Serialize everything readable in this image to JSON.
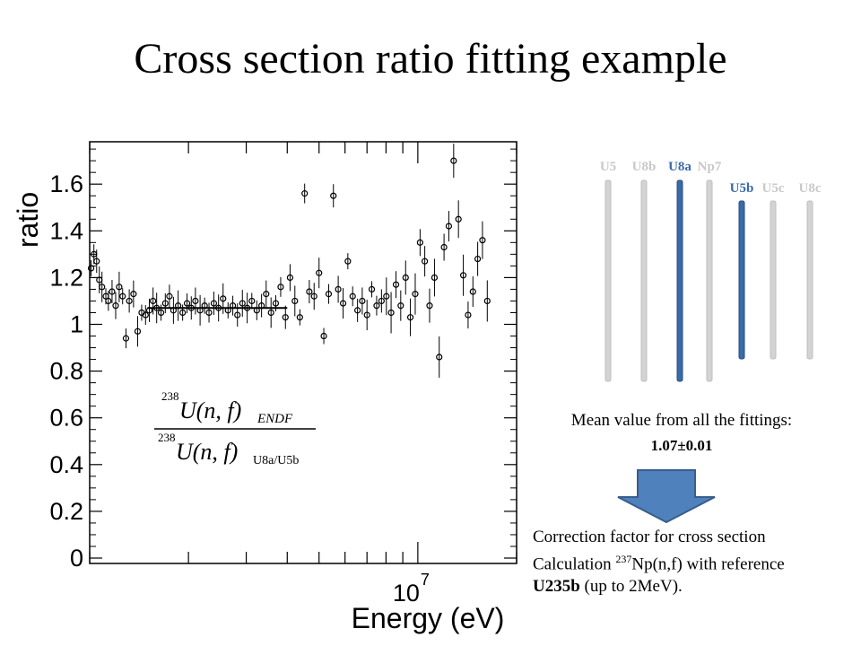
{
  "slide": {
    "title": "Cross section ratio fitting example"
  },
  "formula": {
    "numerator_mass": "238",
    "numerator_text": "U(n, f)",
    "numerator_sub": "ENDF",
    "denominator_mass": "238",
    "denominator_text": "U(n, f)",
    "denominator_sub": "U8a/U5b"
  },
  "detectors": {
    "top_labels": [
      "U5",
      "U8b",
      "U8a",
      "Np7"
    ],
    "bottom_labels": [
      "U5b",
      "U5c",
      "U8c"
    ],
    "highlighted": [
      "U8a",
      "U5b"
    ],
    "colors": {
      "normal_bar": "#d3d3d3",
      "highlight_bar": "#3b6aa8",
      "normal_label": "#c8c8c8",
      "highlight_label": "#3b6aa8"
    }
  },
  "annotation": {
    "mean_text": "Mean value from all the fittings:",
    "mean_value": "1.07±0.01",
    "correction_line1": "Correction factor for cross section",
    "correction_line2_pre": "Calculation ",
    "correction_line2_sup": "237",
    "correction_line2_post": "Np(n,f) with reference",
    "correction_line3_bold": "U235b",
    "correction_line3_rest": " (up to 2MeV).",
    "arrow_color": "#4f81bd"
  },
  "chart_data": {
    "type": "scatter",
    "title": "",
    "xlabel": "Energy (eV)",
    "ylabel": "ratio",
    "x_scale": "log",
    "xlim": [
      1000000,
      20000000
    ],
    "ylim": [
      0,
      1.8
    ],
    "y_ticks": [
      "0",
      "0.2",
      "0.4",
      "0.6",
      "0.8",
      "1",
      "1.2",
      "1.4",
      "1.6"
    ],
    "x_tick_label_base": "10",
    "x_tick_label_exp": "7",
    "x_tick_value": 10000000,
    "fit": {
      "value": 1.07,
      "x_range": [
        1500000,
        4000000
      ]
    },
    "series": [
      {
        "marker": "open-circle",
        "x": [
          1010000,
          1030000,
          1050000,
          1070000,
          1090000,
          1120000,
          1140000,
          1170000,
          1200000,
          1230000,
          1260000,
          1290000,
          1320000,
          1360000,
          1400000,
          1440000,
          1480000,
          1520000,
          1560000,
          1600000,
          1650000,
          1700000,
          1750000,
          1800000,
          1860000,
          1920000,
          1980000,
          2040000,
          2100000,
          2170000,
          2240000,
          2310000,
          2390000,
          2470000,
          2550000,
          2640000,
          2730000,
          2820000,
          2920000,
          3020000,
          3120000,
          3230000,
          3340000,
          3450000,
          3570000,
          3690000,
          3820000,
          3950000,
          4080000,
          4220000,
          4370000,
          4520000,
          4670000,
          4830000,
          5000000,
          5170000,
          5350000,
          5530000,
          5720000,
          5920000,
          6120000,
          6330000,
          6550000,
          6770000,
          7000000,
          7240000,
          7490000,
          7750000,
          8020000,
          8290000,
          8580000,
          8870000,
          9180000,
          9490000,
          9820000,
          10160000,
          10500000,
          10860000,
          11240000,
          11620000,
          12020000,
          12430000,
          12860000,
          13300000,
          13760000,
          14230000,
          14720000,
          15220000,
          15740000,
          16280000
        ],
        "y": [
          1.24,
          1.3,
          1.27,
          1.19,
          1.16,
          1.12,
          1.1,
          1.14,
          1.08,
          1.16,
          1.12,
          0.94,
          1.1,
          1.13,
          0.97,
          1.05,
          1.04,
          1.06,
          1.1,
          1.07,
          1.05,
          1.09,
          1.12,
          1.06,
          1.08,
          1.05,
          1.09,
          1.07,
          1.1,
          1.06,
          1.08,
          1.05,
          1.09,
          1.07,
          1.11,
          1.06,
          1.08,
          1.04,
          1.09,
          1.07,
          1.1,
          1.06,
          1.08,
          1.13,
          1.05,
          1.09,
          1.16,
          1.03,
          1.2,
          1.1,
          1.03,
          1.56,
          1.14,
          1.12,
          1.22,
          0.95,
          1.13,
          1.55,
          1.15,
          1.09,
          1.27,
          1.12,
          1.06,
          1.1,
          1.04,
          1.15,
          1.08,
          1.1,
          1.12,
          1.05,
          1.17,
          1.08,
          1.2,
          1.03,
          1.13,
          1.35,
          1.27,
          1.08,
          1.2,
          0.86,
          1.33,
          1.42,
          1.7,
          1.45,
          1.21,
          1.04,
          1.14,
          1.28,
          1.36,
          1.1
        ]
      }
    ]
  }
}
